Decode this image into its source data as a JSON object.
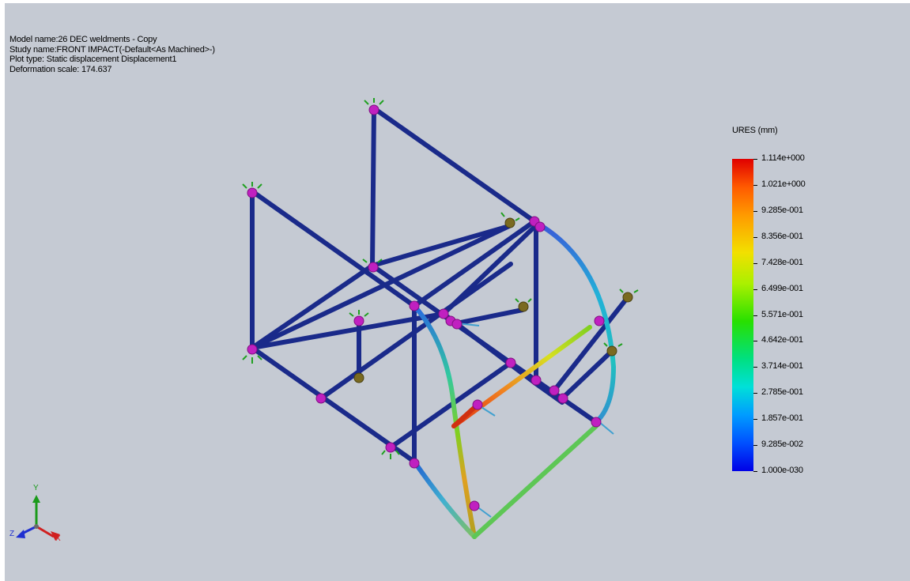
{
  "info": {
    "model_name": "Model name:26 DEC weldments - Copy",
    "study_name": "Study name:FRONT IMPACT(-Default<As Machined>-)",
    "plot_type": "Plot type: Static displacement Displacement1",
    "deformation_scale": "Deformation scale: 174.637"
  },
  "legend": {
    "title": "URES (mm)",
    "ticks": [
      "1.114e+000",
      "1.021e+000",
      "9.285e-001",
      "8.356e-001",
      "7.428e-001",
      "6.499e-001",
      "5.571e-001",
      "4.642e-001",
      "3.714e-001",
      "2.785e-001",
      "1.857e-001",
      "9.285e-002",
      "1.000e-030"
    ],
    "colors": {
      "max": "#e00000",
      "mid": "#28e000",
      "min": "#0000e6"
    }
  },
  "triad": {
    "x_label": "X",
    "y_label": "Y",
    "z_label": "Z",
    "x_color": "#d02020",
    "y_color": "#1a9a1a",
    "z_color": "#2030d0"
  },
  "icons": {
    "joint": "joint-sphere-icon",
    "fixture": "fixture-arrow-icon",
    "triad": "axis-triad-icon"
  },
  "colors": {
    "background": "#c5cad3",
    "frame_member": "#1a2a8a",
    "joint": "#c020c0",
    "fixture": "#20a020"
  }
}
